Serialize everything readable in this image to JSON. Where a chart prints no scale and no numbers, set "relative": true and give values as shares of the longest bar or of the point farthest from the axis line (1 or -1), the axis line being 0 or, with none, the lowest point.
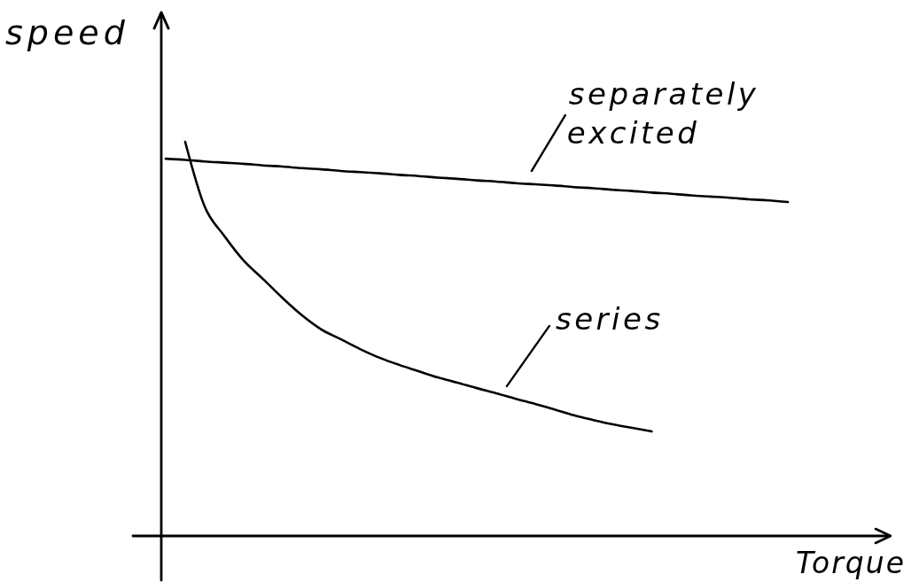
{
  "chart_data": {
    "type": "line",
    "xlabel": "Torque",
    "ylabel": "speed",
    "relative": true,
    "categories": [
      null,
      null,
      null,
      null,
      null,
      null,
      null,
      null,
      null,
      null,
      null,
      null,
      null,
      null,
      null,
      null,
      null,
      null,
      null,
      null,
      null,
      null,
      null,
      null,
      null,
      null,
      null,
      null,
      null,
      null,
      null,
      null,
      null
    ],
    "series": [
      {
        "name": "separately excited",
        "color": "#000000",
        "values": [
          0.957,
          0.954,
          0.95,
          0.947,
          0.944,
          0.94,
          0.937,
          0.933,
          0.93,
          0.926,
          0.923,
          0.92,
          0.916,
          0.913,
          0.909,
          0.906,
          0.902,
          0.899,
          0.895,
          0.892,
          0.889,
          0.885,
          0.882,
          0.878,
          0.875,
          0.871,
          0.868,
          0.864,
          0.861,
          0.858,
          0.854,
          0.851,
          0.847
        ]
      },
      {
        "name": "series",
        "color": "#000000",
        "values": [
          null,
          1,
          0.836,
          0.762,
          0.699,
          0.652,
          0.604,
          0.56,
          0.524,
          0.499,
          0.474,
          0.452,
          0.434,
          0.418,
          0.402,
          0.389,
          0.375,
          0.362,
          0.348,
          0.335,
          0.321,
          0.306,
          0.294,
          0.283,
          0.274,
          0.265,
          null,
          null,
          null,
          null,
          null,
          null,
          null
        ]
      }
    ]
  }
}
